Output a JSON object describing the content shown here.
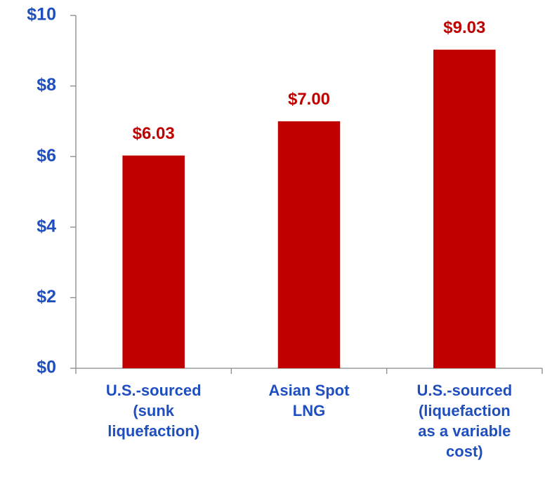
{
  "chart_data": {
    "type": "bar",
    "categories": [
      "U.S.-sourced\n(sunk\nliquefaction)",
      "Asian Spot\nLNG",
      "U.S.-sourced\n(liquefaction\nas a variable\ncost)"
    ],
    "values": [
      6.03,
      7.0,
      9.03
    ],
    "value_labels": [
      "$6.03",
      "$7.00",
      "$9.03"
    ],
    "color": "#c00000",
    "ylim": [
      0,
      10
    ],
    "yticks": [
      {
        "value": 0,
        "label": "$0"
      },
      {
        "value": 2,
        "label": "$2"
      },
      {
        "value": 4,
        "label": "$4"
      },
      {
        "value": 6,
        "label": "$6"
      },
      {
        "value": 8,
        "label": "$8"
      },
      {
        "value": 10,
        "label": "$10"
      }
    ],
    "grid": false
  }
}
